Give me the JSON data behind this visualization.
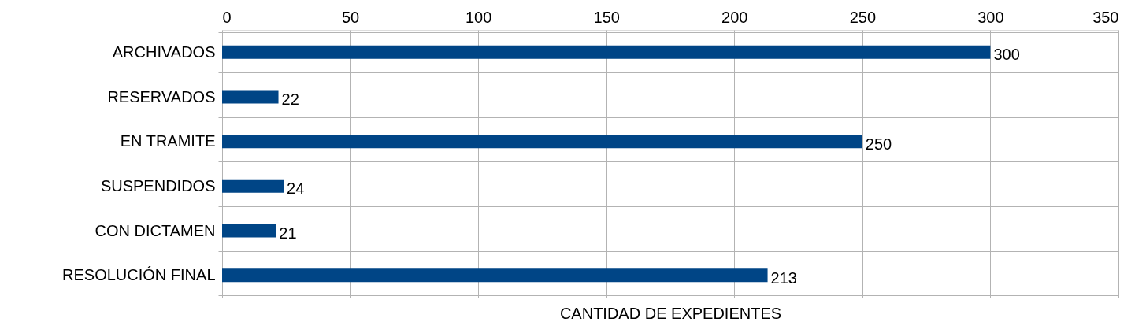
{
  "chart_data": {
    "type": "bar",
    "orientation": "horizontal",
    "xlabel": "CANTIDAD DE EXPEDIENTES",
    "categories": [
      "ARCHIVADOS",
      "RESERVADOS",
      "EN TRAMITE",
      "SUSPENDIDOS",
      "CON DICTAMEN",
      "RESOLUCIÓN FINAL"
    ],
    "values": [
      300,
      22,
      250,
      24,
      21,
      213
    ],
    "color": "#004586",
    "xlim": [
      0,
      350
    ],
    "xticks": [
      0,
      50,
      100,
      150,
      200,
      250,
      300,
      350
    ],
    "grid": true,
    "data_labels": true
  }
}
